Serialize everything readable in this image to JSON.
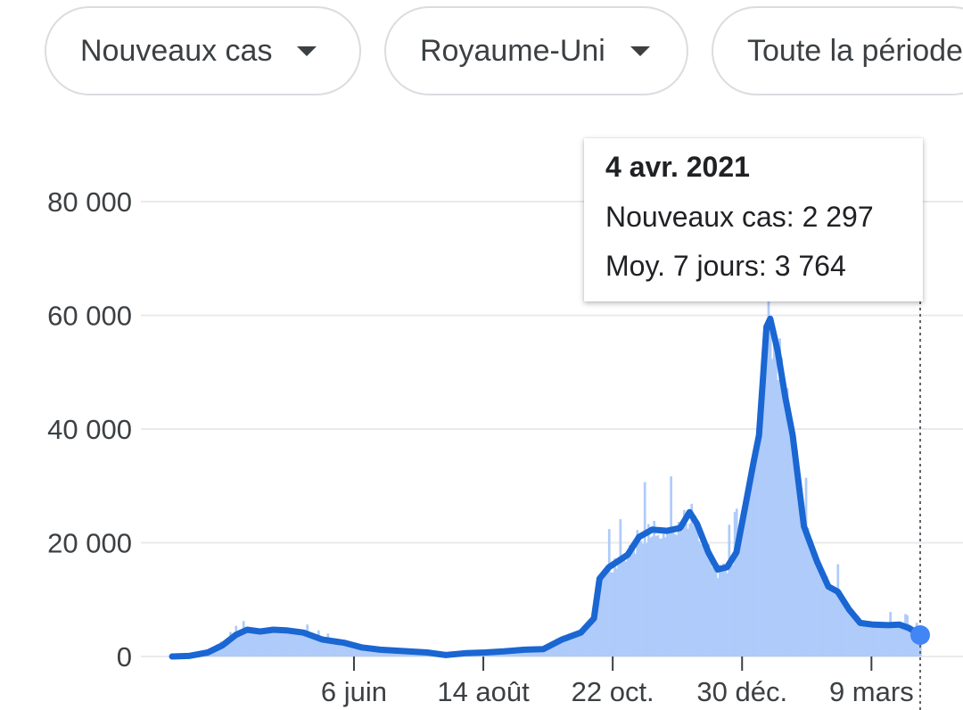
{
  "filters": {
    "metric": "Nouveaux cas",
    "region": "Royaume-Uni",
    "period": "Toute la période"
  },
  "tooltip": {
    "date": "4 avr. 2021",
    "cases_label": "Nouveaux cas",
    "cases_value": "2 297",
    "avg_label": "Moy. 7 jours",
    "avg_value": "3 764"
  },
  "colors": {
    "line": "#1a66d2",
    "bars": "#aecbfa",
    "grid": "#e8eaed",
    "marker": "#4285f4",
    "text": "#3c4043"
  },
  "chart_data": {
    "type": "area",
    "title": "",
    "xlabel": "",
    "ylabel": "",
    "ylim": [
      0,
      80000
    ],
    "y_ticks": [
      0,
      20000,
      40000,
      60000,
      80000
    ],
    "y_tick_labels": [
      "0",
      "20 000",
      "40 000",
      "60 000",
      "80 000"
    ],
    "x_range": [
      "2020-03-01",
      "2021-04-04"
    ],
    "x_ticks": [
      "2020-06-06",
      "2020-08-14",
      "2020-10-22",
      "2020-12-30",
      "2021-03-09"
    ],
    "x_tick_labels": [
      "6 juin",
      "14 août",
      "22 oct.",
      "30 déc.",
      "9 mars"
    ],
    "grid": true,
    "legend": "none",
    "series": [
      {
        "kind": "line",
        "points": [
          [
            "2020-03-01",
            0
          ],
          [
            "2020-03-10",
            100
          ],
          [
            "2020-03-20",
            700
          ],
          [
            "2020-03-28",
            2000
          ],
          [
            "2020-04-04",
            3800
          ],
          [
            "2020-04-10",
            4700
          ],
          [
            "2020-04-17",
            4400
          ],
          [
            "2020-04-24",
            4700
          ],
          [
            "2020-05-01",
            4600
          ],
          [
            "2020-05-10",
            4200
          ],
          [
            "2020-05-20",
            3000
          ],
          [
            "2020-06-01",
            2400
          ],
          [
            "2020-06-10",
            1600
          ],
          [
            "2020-06-20",
            1200
          ],
          [
            "2020-07-05",
            900
          ],
          [
            "2020-07-15",
            700
          ],
          [
            "2020-07-25",
            250
          ],
          [
            "2020-08-05",
            600
          ],
          [
            "2020-08-15",
            700
          ],
          [
            "2020-08-25",
            900
          ],
          [
            "2020-09-05",
            1200
          ],
          [
            "2020-09-15",
            1300
          ],
          [
            "2020-09-25",
            3000
          ],
          [
            "2020-10-05",
            4200
          ],
          [
            "2020-10-12",
            6700
          ],
          [
            "2020-10-15",
            13700
          ],
          [
            "2020-10-20",
            15700
          ],
          [
            "2020-10-30",
            17900
          ],
          [
            "2020-11-05",
            21000
          ],
          [
            "2020-11-12",
            22300
          ],
          [
            "2020-11-20",
            22100
          ],
          [
            "2020-11-27",
            22600
          ],
          [
            "2020-12-02",
            25400
          ],
          [
            "2020-12-06",
            23300
          ],
          [
            "2020-12-12",
            18300
          ],
          [
            "2020-12-17",
            15300
          ],
          [
            "2020-12-22",
            15700
          ],
          [
            "2020-12-27",
            18300
          ],
          [
            "2021-01-01",
            26900
          ],
          [
            "2021-01-05",
            34000
          ],
          [
            "2021-01-08",
            38900
          ],
          [
            "2021-01-10",
            48300
          ],
          [
            "2021-01-12",
            58000
          ],
          [
            "2021-01-14",
            59400
          ],
          [
            "2021-01-18",
            53700
          ],
          [
            "2021-01-22",
            45700
          ],
          [
            "2021-01-26",
            38900
          ],
          [
            "2021-02-01",
            22900
          ],
          [
            "2021-02-08",
            16700
          ],
          [
            "2021-02-14",
            12300
          ],
          [
            "2021-02-19",
            11400
          ],
          [
            "2021-02-25",
            8300
          ],
          [
            "2021-03-03",
            5900
          ],
          [
            "2021-03-10",
            5600
          ],
          [
            "2021-03-18",
            5500
          ],
          [
            "2021-03-24",
            5600
          ],
          [
            "2021-03-29",
            5000
          ],
          [
            "2021-04-04",
            3764
          ]
        ]
      }
    ],
    "highlight": {
      "x": "2021-04-04",
      "new_cases": 2297,
      "avg_7_days": 3764
    }
  }
}
